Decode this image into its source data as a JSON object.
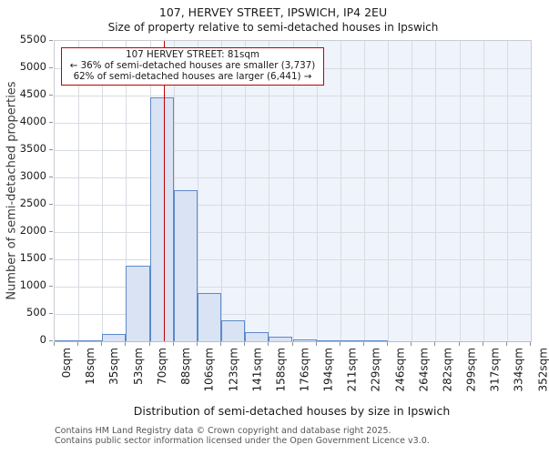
{
  "title": "107, HERVEY STREET, IPSWICH, IP4 2EU",
  "subtitle": "Size of property relative to semi-detached houses in Ipswich",
  "annotation": {
    "line1": "107 HERVEY STREET: 81sqm",
    "line2": "← 36% of semi-detached houses are smaller (3,737)",
    "line3": "62% of semi-detached houses are larger (6,441) →"
  },
  "footer": {
    "line1": "Contains HM Land Registry data © Crown copyright and database right 2025.",
    "line2": "Contains public sector information licensed under the Open Government Licence v3.0."
  },
  "chart_data": {
    "type": "bar",
    "title": "107, HERVEY STREET, IPSWICH, IP4 2EU",
    "subtitle": "Size of property relative to semi-detached houses in Ipswich",
    "xlabel": "Distribution of semi-detached houses by size in Ipswich",
    "ylabel": "Number of semi-detached properties",
    "categories": [
      "0sqm",
      "18sqm",
      "35sqm",
      "53sqm",
      "70sqm",
      "88sqm",
      "106sqm",
      "123sqm",
      "141sqm",
      "158sqm",
      "176sqm",
      "194sqm",
      "211sqm",
      "229sqm",
      "246sqm",
      "264sqm",
      "282sqm",
      "299sqm",
      "317sqm",
      "334sqm",
      "352sqm"
    ],
    "bin_width_sqm": 17.6,
    "values": [
      5,
      15,
      140,
      1390,
      4460,
      2760,
      890,
      390,
      170,
      85,
      40,
      20,
      20,
      15,
      0,
      0,
      0,
      0,
      0,
      0
    ],
    "x_range_sqm": [
      0,
      352
    ],
    "ylim": [
      0,
      5500
    ],
    "ytick_step": 500,
    "marker_sqm": 81,
    "grid": true,
    "legend": "none",
    "colors": {
      "bar_fill": "#d9e3f4",
      "bar_edge": "#5c8ac8",
      "marker_line": "#c00000",
      "annotation_border": "#bf0000",
      "larger_region_shade": "#eff3fb",
      "gridline": "#d8dbe2"
    }
  }
}
